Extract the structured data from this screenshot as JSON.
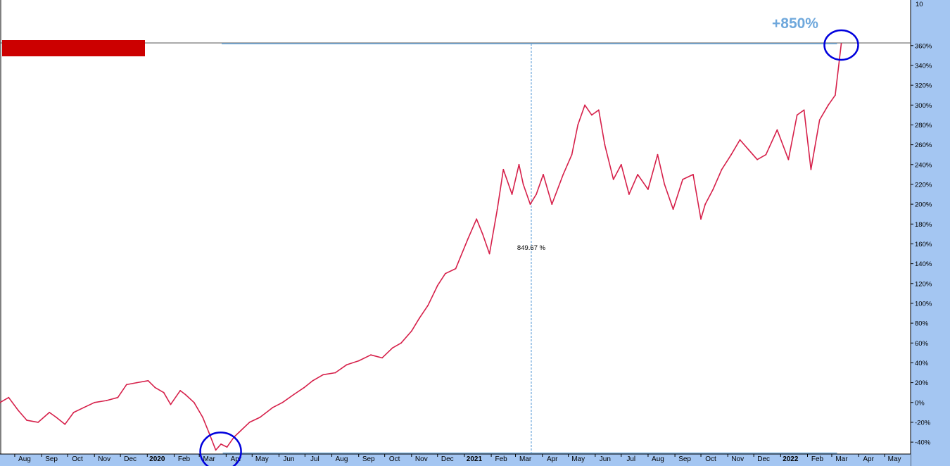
{
  "chart_data": {
    "type": "line",
    "x_axis": {
      "tick_labels": [
        "Aug",
        "Sep",
        "Oct",
        "Nov",
        "Dec",
        "2020",
        "Feb",
        "Mar",
        "Apr",
        "May",
        "Jun",
        "Jul",
        "Aug",
        "Sep",
        "Oct",
        "Nov",
        "Dec",
        "2021",
        "Feb",
        "Mar",
        "Apr",
        "May",
        "Jun",
        "Jul",
        "Aug",
        "Sep",
        "Oct",
        "Nov",
        "Dec",
        "2022",
        "Feb",
        "Mar",
        "Apr",
        "May"
      ],
      "year_labels": [
        "2020",
        "2021",
        "2022"
      ],
      "range": [
        "2019-07-15",
        "2022-05-31"
      ]
    },
    "y_axis": {
      "position": "right",
      "tick_values": [
        -40,
        -20,
        0,
        20,
        40,
        60,
        80,
        100,
        120,
        140,
        160,
        180,
        200,
        220,
        240,
        260,
        280,
        300,
        320,
        340,
        360
      ],
      "tick_labels": [
        "-40%",
        "-20%",
        "0%",
        "20%",
        "40%",
        "60%",
        "80%",
        "100%",
        "120%",
        "140%",
        "160%",
        "180%",
        "200%",
        "220%",
        "240%",
        "260%",
        "280%",
        "300%",
        "320%",
        "340%",
        "360%"
      ],
      "top_label": "10",
      "range": [
        -52,
        406
      ],
      "unit": "%"
    },
    "grid": false,
    "series": [
      {
        "color": "#d6204a",
        "x": [
          "2019-07-15",
          "2019-07-25",
          "2019-08-05",
          "2019-08-15",
          "2019-08-28",
          "2019-09-10",
          "2019-09-18",
          "2019-09-28",
          "2019-10-08",
          "2019-10-20",
          "2019-11-01",
          "2019-11-15",
          "2019-11-28",
          "2019-12-08",
          "2019-12-20",
          "2020-01-02",
          "2020-01-10",
          "2020-01-20",
          "2020-01-28",
          "2020-02-08",
          "2020-02-14",
          "2020-02-24",
          "2020-03-05",
          "2020-03-12",
          "2020-03-20",
          "2020-03-26",
          "2020-04-02",
          "2020-04-10",
          "2020-04-16",
          "2020-04-28",
          "2020-05-10",
          "2020-05-25",
          "2020-06-05",
          "2020-06-18",
          "2020-06-30",
          "2020-07-10",
          "2020-07-22",
          "2020-08-05",
          "2020-08-18",
          "2020-09-01",
          "2020-09-15",
          "2020-09-28",
          "2020-10-10",
          "2020-10-20",
          "2020-11-01",
          "2020-11-10",
          "2020-11-20",
          "2020-12-01",
          "2020-12-10",
          "2020-12-22",
          "2021-01-05",
          "2021-01-15",
          "2021-01-22",
          "2021-01-30",
          "2021-02-08",
          "2021-02-15",
          "2021-02-25",
          "2021-03-05",
          "2021-03-10",
          "2021-03-18",
          "2021-03-25",
          "2021-04-02",
          "2021-04-12",
          "2021-04-25",
          "2021-05-05",
          "2021-05-12",
          "2021-05-20",
          "2021-05-28",
          "2021-06-05",
          "2021-06-12",
          "2021-06-22",
          "2021-07-01",
          "2021-07-10",
          "2021-07-20",
          "2021-08-01",
          "2021-08-12",
          "2021-08-20",
          "2021-08-30",
          "2021-09-10",
          "2021-09-22",
          "2021-10-01",
          "2021-10-06",
          "2021-10-15",
          "2021-10-25",
          "2021-11-05",
          "2021-11-15",
          "2021-11-25",
          "2021-12-05",
          "2021-12-15",
          "2021-12-28",
          "2022-01-10",
          "2022-01-20",
          "2022-01-28",
          "2022-02-05",
          "2022-02-15",
          "2022-02-25",
          "2022-03-05",
          "2022-03-12"
        ],
        "y": [
          0,
          5,
          -8,
          -18,
          -20,
          -10,
          -15,
          -22,
          -10,
          -5,
          0,
          2,
          5,
          18,
          20,
          22,
          15,
          10,
          -2,
          12,
          8,
          0,
          -15,
          -30,
          -48,
          -42,
          -45,
          -35,
          -30,
          -20,
          -15,
          -5,
          0,
          8,
          15,
          22,
          28,
          30,
          38,
          42,
          48,
          45,
          55,
          60,
          72,
          85,
          98,
          118,
          130,
          135,
          165,
          185,
          170,
          150,
          195,
          235,
          210,
          240,
          220,
          200,
          210,
          230,
          200,
          230,
          250,
          280,
          300,
          290,
          295,
          260,
          225,
          240,
          210,
          230,
          215,
          250,
          220,
          195,
          225,
          230,
          185,
          200,
          215,
          235,
          250,
          265,
          255,
          245,
          250,
          275,
          245,
          290,
          295,
          235,
          285,
          300,
          310,
          362
        ]
      }
    ],
    "annotations": {
      "callout": "+850%",
      "measure_label": "849.67 %",
      "high_line": 362,
      "low_line": -51
    }
  }
}
